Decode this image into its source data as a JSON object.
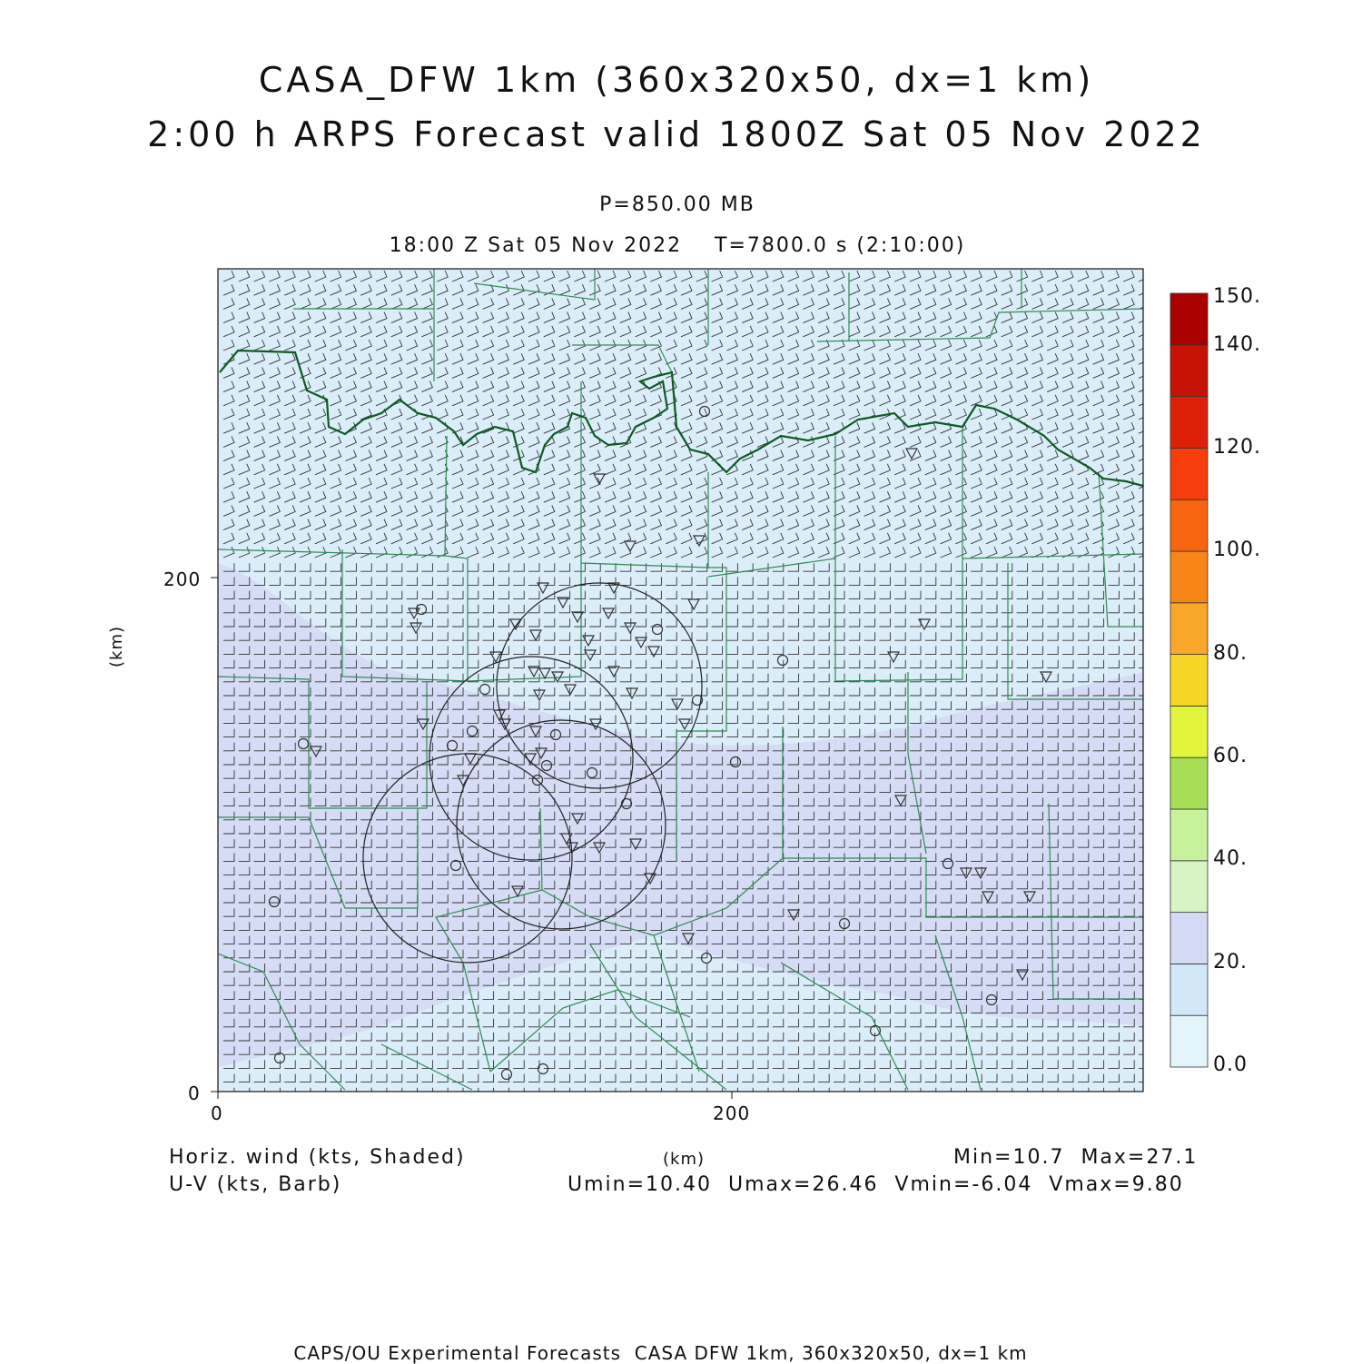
{
  "title": {
    "line1": "CASA_DFW 1km (360x320x50, dx=1 km)",
    "line2": "2:00 h ARPS Forecast valid 1800Z Sat 05 Nov 2022"
  },
  "subtitle": {
    "level": "P=850.00 MB",
    "time": "18:00 Z Sat 05 Nov 2022    T=7800.0 s (2:10:00)"
  },
  "axes": {
    "x_unit": "(km)",
    "y_unit": "(km)",
    "x_ticks": [
      "0",
      "200"
    ],
    "y_ticks": [
      "0",
      "200"
    ],
    "x_tick_values": [
      0,
      200
    ],
    "y_tick_values": [
      0,
      200
    ],
    "x_range": [
      0,
      360
    ],
    "y_range": [
      0,
      320
    ]
  },
  "colorbar": {
    "labels": [
      "150.",
      "140.",
      "120.",
      "100.",
      "80.",
      "60.",
      "40.",
      "20.",
      "0.0"
    ],
    "colors": [
      "#e4f4fb",
      "#d2e8f8",
      "#d4daf5",
      "#d8f3c4",
      "#c7f29b",
      "#a6df55",
      "#e2f53c",
      "#f7d526",
      "#f8a72a",
      "#f88518",
      "#f76511",
      "#f63d0c",
      "#dc2108",
      "#c71206",
      "#a90000"
    ],
    "range": [
      0,
      150
    ]
  },
  "field": {
    "name": "Horiz. wind (kts, Shaded)",
    "barb_name": "U-V (kts, Barb)",
    "min_max": "Min=10.7  Max=27.1",
    "uv_stats": "Umin=10.40  Umax=26.46  Vmin=-6.04  Vmax=9.80",
    "background_color": "#dcedfa",
    "band_color": "#d6dcf5",
    "outline_color": "#2f8b4f",
    "river_color": "#0e5a22"
  },
  "footer": "CAPS/OU Experimental Forecasts  CASA DFW 1km, 360x320x50, dx=1 km"
}
